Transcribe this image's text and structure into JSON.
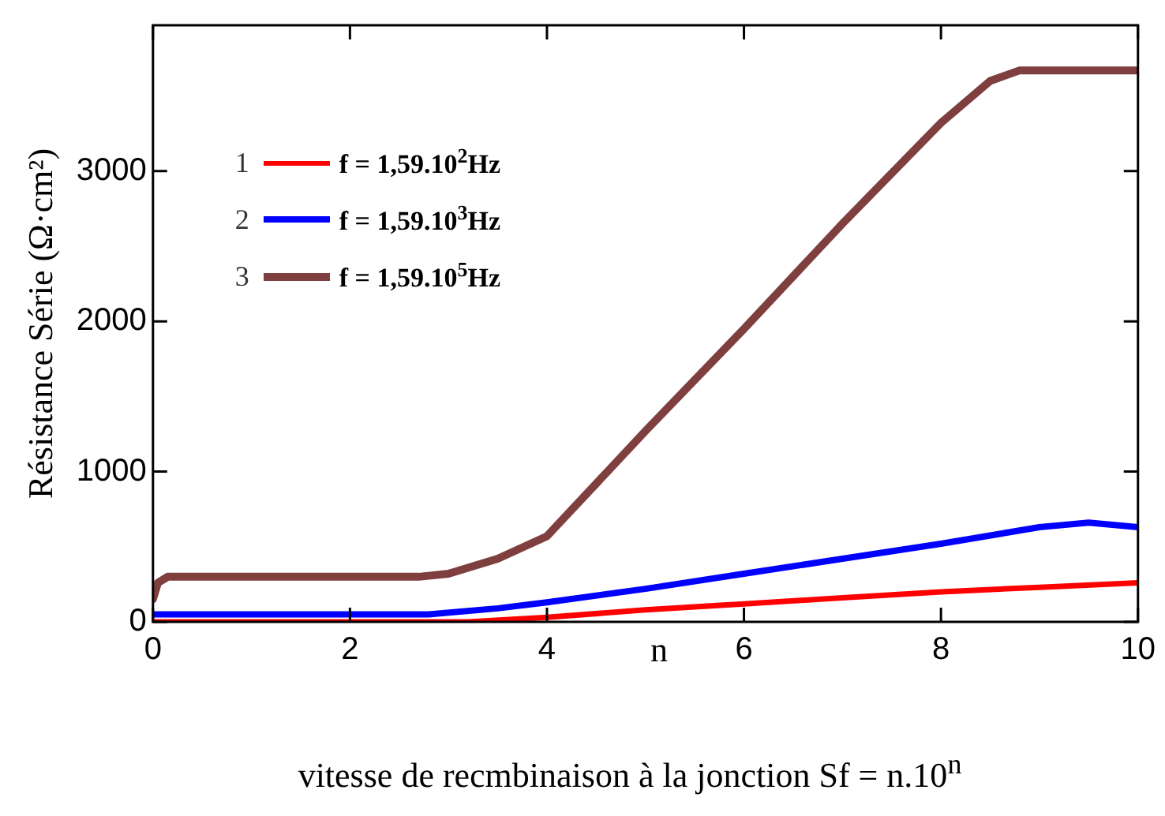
{
  "chart_data": {
    "type": "line",
    "xlabel": "vitesse de recmbinaison à la jonction Sf = n.10$^{n}$",
    "ylabel": "Résistance Série (Ω·cm²)",
    "annotations": [
      "n",
      "1",
      "2",
      "3"
    ],
    "xlim": [
      0,
      10
    ],
    "xticks": [
      0,
      2,
      4,
      6,
      8,
      10
    ],
    "ylim": [
      0,
      3970
    ],
    "yticks": [
      0,
      1000,
      2000,
      3000
    ],
    "grid": false,
    "legend": "top left",
    "marker": "none",
    "line_style": "solid",
    "series": [
      {
        "name": "f = 1,59.10$^{2}$Hz",
        "color": "#ff0000",
        "x": [
          0,
          1,
          2,
          3,
          3.2,
          4,
          5,
          6,
          7,
          8,
          9,
          10
        ],
        "values": [
          0,
          0,
          0,
          0,
          0,
          30,
          80,
          120,
          160,
          200,
          230,
          260
        ]
      },
      {
        "name": "f = 1,59.10$^{3}$Hz",
        "color": "#0000ff",
        "x": [
          0,
          1,
          2,
          2.8,
          3.5,
          4,
          5,
          6,
          7,
          8,
          9,
          9.5,
          10
        ],
        "values": [
          50,
          50,
          50,
          50,
          90,
          130,
          220,
          320,
          420,
          520,
          630,
          660,
          630
        ]
      },
      {
        "name": "f = 1,59.10$^{5}$Hz",
        "color": "#7f3f3f",
        "x": [
          0,
          0.05,
          0.15,
          1,
          2,
          2.7,
          3,
          3.5,
          4,
          5,
          6,
          7,
          8,
          8.5,
          8.8,
          10
        ],
        "values": [
          150,
          260,
          300,
          300,
          300,
          300,
          320,
          420,
          570,
          1270,
          1950,
          2650,
          3320,
          3600,
          3670,
          3670
        ]
      }
    ]
  }
}
